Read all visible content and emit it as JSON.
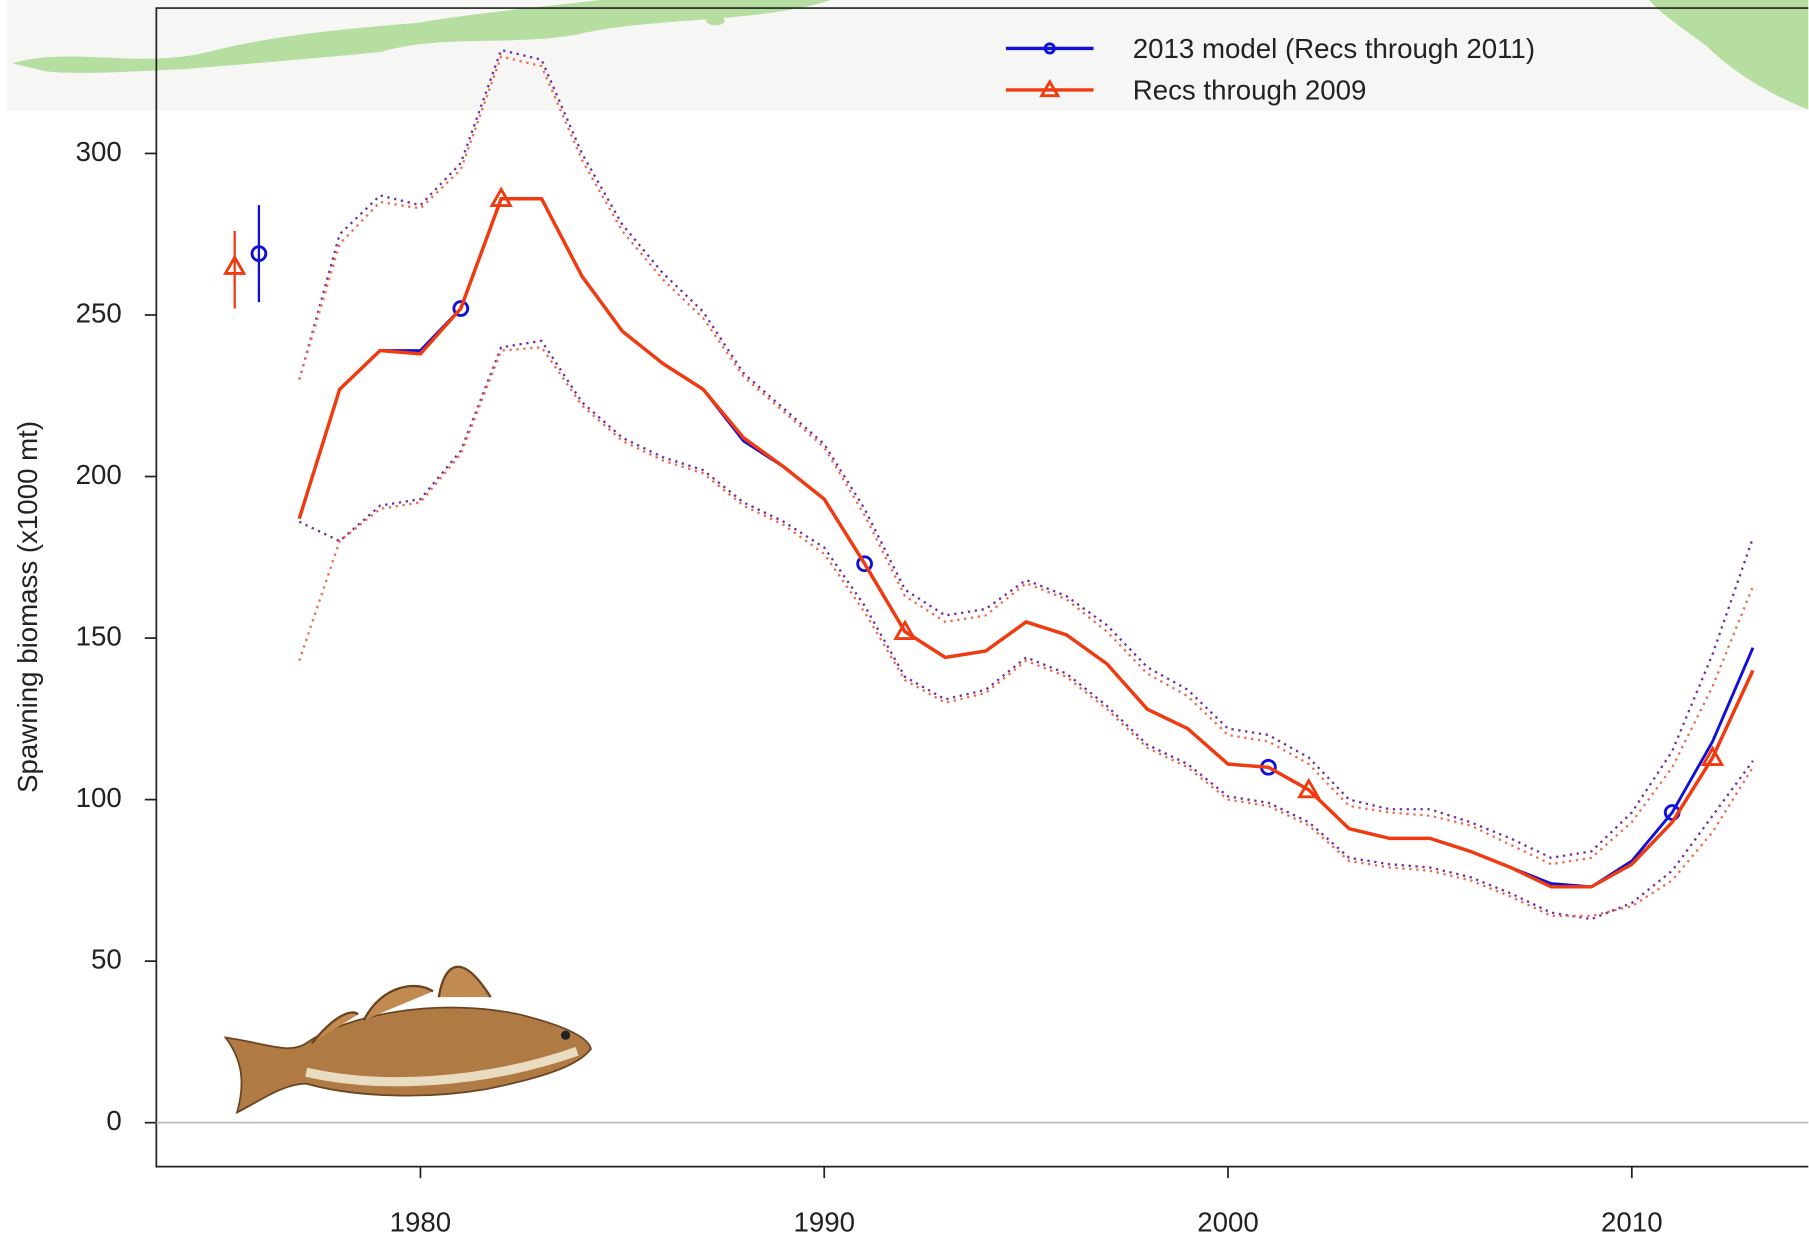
{
  "chart_data": {
    "type": "line",
    "ylabel": "Spawning biomass (x1000 mt)",
    "x": [
      1977,
      1978,
      1979,
      1980,
      1981,
      1982,
      1983,
      1984,
      1985,
      1986,
      1987,
      1988,
      1989,
      1990,
      1991,
      1992,
      1993,
      1994,
      1995,
      1996,
      1997,
      1998,
      1999,
      2000,
      2001,
      2002,
      2003,
      2004,
      2005,
      2006,
      2007,
      2008,
      2009,
      2010,
      2011,
      2012,
      2013
    ],
    "series": [
      {
        "name": "2013 model (Recs through 2011)",
        "color": "#1010d8",
        "ci_color": "#7030a0",
        "marker": "circle",
        "values": [
          187,
          227,
          239,
          239,
          252,
          286,
          286,
          262,
          245,
          235,
          227,
          211,
          203,
          193,
          173,
          152,
          144,
          146,
          155,
          151,
          142,
          128,
          122,
          111,
          110,
          103,
          91,
          88,
          88,
          84,
          79,
          74,
          73,
          81,
          96,
          118,
          147
        ],
        "upper": [
          230,
          275,
          287,
          284,
          297,
          332,
          329,
          300,
          278,
          263,
          251,
          232,
          221,
          210,
          190,
          165,
          157,
          159,
          168,
          163,
          154,
          141,
          134,
          122,
          120,
          113,
          100,
          97,
          97,
          93,
          88,
          82,
          84,
          96,
          115,
          145,
          181
        ],
        "lower": [
          186,
          180,
          191,
          193,
          208,
          240,
          242,
          223,
          212,
          206,
          202,
          192,
          186,
          178,
          160,
          138,
          131,
          134,
          144,
          139,
          129,
          117,
          111,
          101,
          99,
          93,
          82,
          80,
          79,
          76,
          71,
          65,
          63,
          68,
          78,
          95,
          112
        ],
        "initial": {
          "x": 1976.0,
          "value": 269,
          "low": 254,
          "high": 284
        }
      },
      {
        "name": "Recs through 2009",
        "color": "#f03a10",
        "ci_color": "#f06a50",
        "marker": "triangle",
        "values": [
          187,
          227,
          239,
          238,
          252,
          286,
          286,
          262,
          245,
          235,
          227,
          212,
          203,
          193,
          173,
          152,
          144,
          146,
          155,
          151,
          142,
          128,
          122,
          111,
          110,
          103,
          91,
          88,
          88,
          84,
          79,
          73,
          73,
          80,
          93,
          113,
          140
        ],
        "upper": [
          230,
          272,
          285,
          283,
          295,
          330,
          327,
          298,
          276,
          261,
          249,
          231,
          220,
          209,
          188,
          163,
          155,
          157,
          167,
          162,
          152,
          139,
          132,
          120,
          118,
          111,
          98,
          96,
          95,
          92,
          86,
          80,
          82,
          93,
          110,
          135,
          166
        ],
        "lower": [
          143,
          180,
          190,
          192,
          207,
          239,
          240,
          222,
          211,
          205,
          201,
          191,
          185,
          176,
          158,
          137,
          130,
          133,
          143,
          138,
          128,
          116,
          110,
          100,
          98,
          92,
          81,
          79,
          78,
          75,
          70,
          64,
          64,
          67,
          75,
          90,
          110
        ],
        "initial": {
          "x": 1975.4,
          "value": 265,
          "low": 252,
          "high": 276
        }
      }
    ],
    "xlim": [
      1973.46,
      2014.37
    ],
    "ylim": [
      -13.6,
      345
    ],
    "xticks": [
      1980,
      1990,
      2000,
      2010
    ],
    "yticks": [
      0,
      50,
      100,
      150,
      200,
      250,
      300
    ],
    "legend": "top"
  }
}
